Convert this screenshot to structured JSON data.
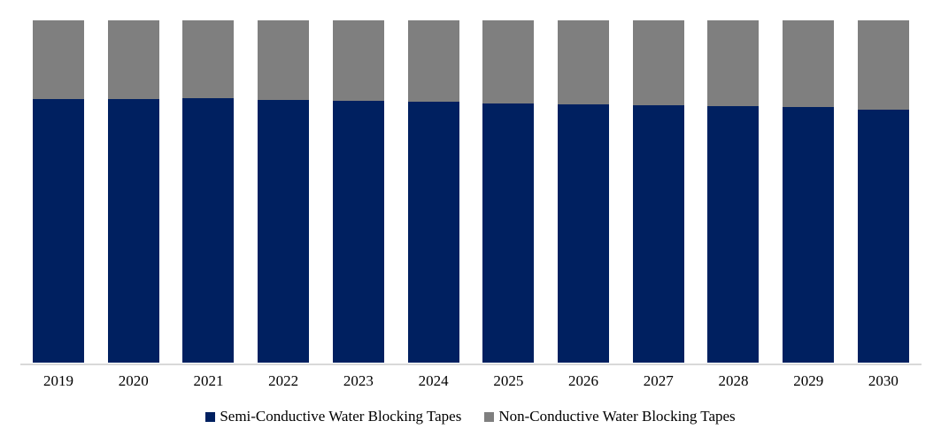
{
  "chart_data": {
    "type": "bar",
    "subtype": "stacked-100-column",
    "title": "",
    "xlabel": "",
    "ylabel": "",
    "ylim": [
      0,
      100
    ],
    "grid": false,
    "y_axis_visible": false,
    "legend_position": "bottom",
    "background_color": "#FFFFFF",
    "axis_line_color": "#D9D9D9",
    "label_color": "#000000",
    "categories": [
      "2019",
      "2020",
      "2021",
      "2022",
      "2023",
      "2024",
      "2025",
      "2026",
      "2027",
      "2028",
      "2029",
      "2030"
    ],
    "series": [
      {
        "name": "Semi-Conductive Water Blocking Tapes",
        "color": "#002060",
        "values": [
          77.0,
          77.0,
          77.2,
          76.7,
          76.5,
          76.3,
          75.7,
          75.4,
          75.2,
          74.9,
          74.6,
          74.0
        ]
      },
      {
        "name": "Non-Conductive Water Blocking Tapes",
        "color": "#7F7F7F",
        "values": [
          23.0,
          23.0,
          22.8,
          23.3,
          23.5,
          23.7,
          24.3,
          24.6,
          24.8,
          25.1,
          25.4,
          26.0
        ]
      }
    ]
  }
}
